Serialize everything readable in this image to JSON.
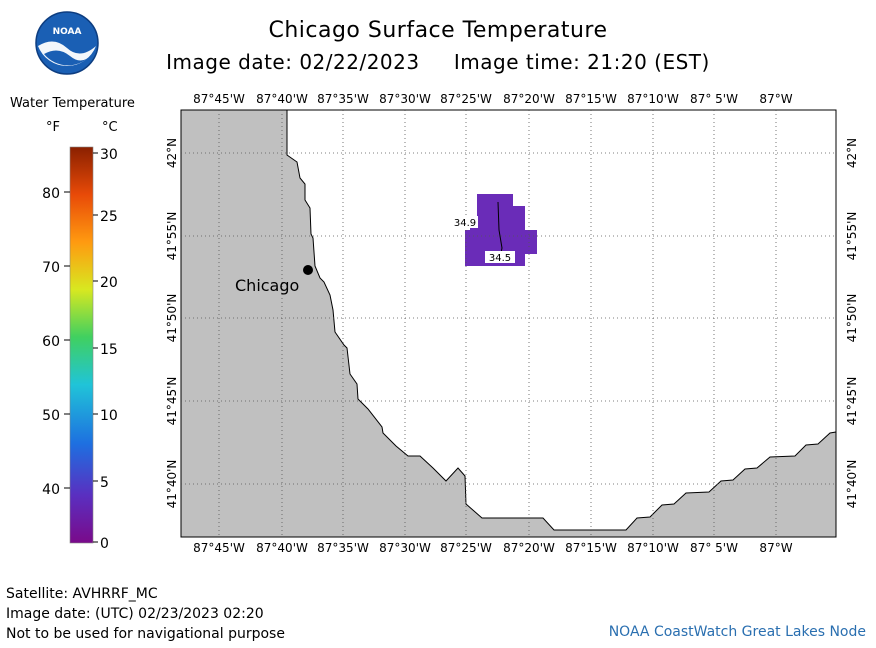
{
  "header": {
    "title": "Chicago Surface Temperature",
    "image_date_label": "Image date: 02/22/2023",
    "image_time_label": "Image time: 21:20 (EST)",
    "logo_text": "NOAA"
  },
  "legend": {
    "title": "Water Temperature",
    "unit_f": "°F",
    "unit_c": "°C",
    "f_ticks": [
      "80",
      "70",
      "60",
      "50",
      "40"
    ],
    "c_ticks": [
      "30",
      "25",
      "20",
      "15",
      "10",
      "5",
      "0"
    ]
  },
  "map": {
    "lon_labels": [
      "87°45'W",
      "87°40'W",
      "87°35'W",
      "87°30'W",
      "87°25'W",
      "87°20'W",
      "87°15'W",
      "87°10'W",
      "87° 5'W",
      "87°W"
    ],
    "lat_labels": [
      "42°N",
      "41°55'N",
      "41°50'N",
      "41°45'N",
      "41°40'N"
    ],
    "city_label": "Chicago",
    "contour_labels": [
      "34.9",
      "34.5"
    ],
    "colors": {
      "land": "#c0c0c0",
      "water_patch": "#6a2cb8",
      "water_patch_dark": "#5a22a8",
      "grid": "#666666"
    }
  },
  "footer": {
    "satellite": "Satellite: AVHRRF_MC",
    "utc_date": "Image date: (UTC) 02/23/2023  02:20",
    "disclaimer": "Not to be used for navigational purpose",
    "credit": "NOAA CoastWatch Great Lakes Node"
  }
}
